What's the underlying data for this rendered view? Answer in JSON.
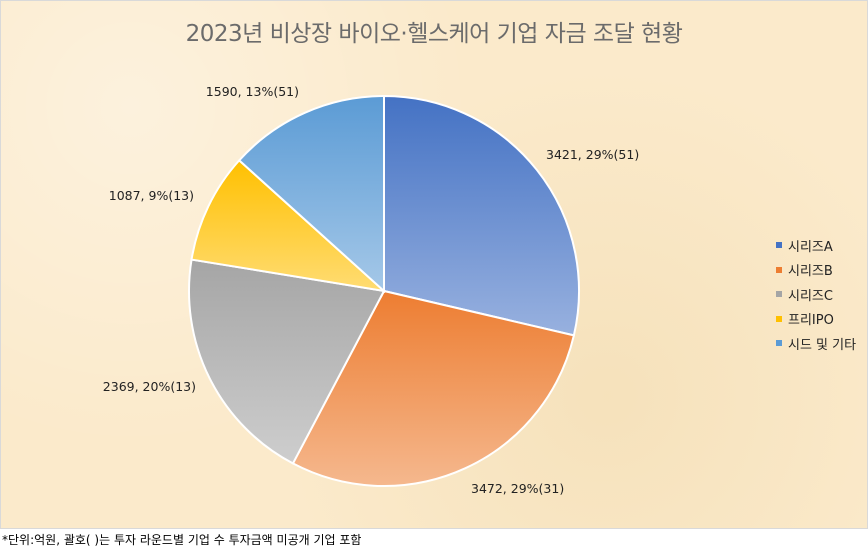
{
  "chart_data": {
    "type": "pie",
    "title": "2023년 비상장 바이오·헬스케어 기업 자금 조달 현황",
    "categories": [
      "시리즈A",
      "시리즈B",
      "시리즈C",
      "프리IPO",
      "시드 및 기타"
    ],
    "values": [
      3421,
      3472,
      2369,
      1087,
      1590
    ],
    "data_labels": [
      "3421, 29%(51)",
      "3472, 29%(31)",
      "2369, 20%(13)",
      "1087, 9%(13)",
      "1590, 13%(51)"
    ],
    "colors": [
      "#4472c4",
      "#ed7d31",
      "#a5a5a5",
      "#ffc000",
      "#5b9bd5"
    ],
    "legend_position": "right"
  },
  "footnote": "*단위:억원, 괄호( )는 투자 라운드별 기업 수 투자금액 미공개 기업 포함"
}
